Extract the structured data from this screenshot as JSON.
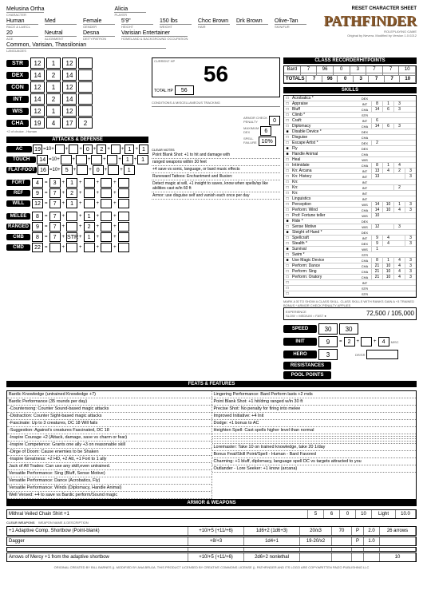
{
  "header": {
    "charname": "Melusina Ortha",
    "player": "Alicia",
    "race": "Human",
    "size": "Med",
    "gender": "Female",
    "height": "5'9\"",
    "weight": "150 lbs",
    "hair": "Choc Brown",
    "eyes": "Drk Brown",
    "skin": "Olive-Tan",
    "age": "20",
    "align": "Neutral",
    "deity": "Desna",
    "occupation": "Varisian Entertainer",
    "languages": "Common, Varisian, Thassilonian",
    "reset": "RESET CHARACTER SHEET",
    "logo": "PATHFINDER",
    "logosub": "ROLEPLAYING GAME",
    "version": "Original by Nevera. Modified by  Version 1.0.0212"
  },
  "abilities": [
    {
      "n": "STR",
      "s": "12",
      "m": "1",
      "t": "12"
    },
    {
      "n": "DEX",
      "s": "14",
      "m": "2",
      "t": "14"
    },
    {
      "n": "CON",
      "s": "12",
      "m": "1",
      "t": "12"
    },
    {
      "n": "INT",
      "s": "14",
      "m": "2",
      "t": "14"
    },
    {
      "n": "WIS",
      "s": "12",
      "m": "1",
      "t": "12"
    },
    {
      "n": "CHA",
      "s": "19",
      "m": "4",
      "t": "17",
      "tm": "2"
    }
  ],
  "abnote": "+2 of choice - Human",
  "defense": {
    "ac": {
      "t": "19",
      "a": "",
      "s": "",
      "d": "",
      "sz": "",
      "n": "",
      "df": "",
      "dg": "",
      "m": ""
    },
    "touch": {
      "t": "14"
    },
    "flat": {
      "t": "16"
    }
  },
  "defside": {
    "armorchk": "0",
    "maxdex": "6",
    "spellfail": "10%"
  },
  "saves": [
    {
      "n": "FORT",
      "t": "4",
      "b": "3",
      "a": "1"
    },
    {
      "n": "REF",
      "t": "9",
      "b": "7",
      "a": "2"
    },
    {
      "n": "WILL",
      "t": "12",
      "b": "7",
      "a": "1"
    }
  ],
  "attacks": [
    {
      "n": "MELEE",
      "t": "8",
      "b": "7",
      "a": "1"
    },
    {
      "n": "RANGED",
      "t": "9",
      "b": "7",
      "a": "2"
    },
    {
      "n": "CMB",
      "t": "8",
      "b": "7",
      "s": "STR",
      "a": "1"
    },
    {
      "n": "CMD",
      "t": "22",
      "b": "",
      "a": ""
    }
  ],
  "hp": {
    "cur": "56",
    "tot": "56",
    "row": [
      "56",
      "8"
    ]
  },
  "classrec": {
    "hdr": "CLASS RECORDERHITPOINTS",
    "rows": [
      [
        "Bard",
        "7",
        "96",
        "0",
        "3",
        "7",
        "7",
        "10"
      ],
      [
        "",
        "",
        "",
        "",
        "",
        "",
        "",
        ""
      ]
    ],
    "totals": [
      "TOTALS",
      "7",
      "96",
      "0",
      "3",
      "7",
      "7",
      "10"
    ]
  },
  "clearnotes": [
    "Point Blank Shot: +1 to hit and damage with",
    "ranged weapons within 30 feet",
    "+4 save vs sonic, language, or bard music effects",
    "Runeward Tattoos: Enchantment and Illusion:",
    "Detect magic at will, +1 insight to saves, know when spells/sp like abilities cast w/in 60 ft",
    "Armor: use disguise self and vanish each once per day"
  ],
  "skillshdr": "SKILLS",
  "skills": [
    {
      "c": "□",
      "n": "Acrobatics *",
      "a": "DEX",
      "t": "",
      "r": "",
      "m": ""
    },
    {
      "c": "□",
      "n": "Appraise",
      "a": "INT",
      "t": "8",
      "r": "1",
      "m": "3"
    },
    {
      "c": "□",
      "n": "Bluff",
      "a": "CHA",
      "t": "14",
      "r": "6",
      "m": "3"
    },
    {
      "c": "□",
      "n": "Climb *",
      "a": "STR",
      "t": "",
      "r": "",
      "m": ""
    },
    {
      "c": "□",
      "n": "Craft:",
      "a": "INT",
      "t": "6",
      "r": "",
      "m": ""
    },
    {
      "c": "□",
      "n": "Diplomacy",
      "a": "CHA",
      "t": "14",
      "r": "6",
      "m": "3"
    },
    {
      "c": "■",
      "n": "Disable Device *",
      "a": "DEX",
      "t": "",
      "r": "",
      "m": ""
    },
    {
      "c": "□",
      "n": "Disguise",
      "a": "CHA",
      "t": "",
      "r": "",
      "m": ""
    },
    {
      "c": "□",
      "n": "Escape Artist *",
      "a": "DEX",
      "t": "2",
      "r": "",
      "m": ""
    },
    {
      "c": "■",
      "n": "Fly",
      "a": "DEX",
      "t": "",
      "r": "",
      "m": ""
    },
    {
      "c": "■",
      "n": "Handle Animal",
      "a": "CHA",
      "t": "",
      "r": "",
      "m": ""
    },
    {
      "c": "□",
      "n": "Heal",
      "a": "WIS",
      "t": "",
      "r": "",
      "m": ""
    },
    {
      "c": "□",
      "n": "Intimidate",
      "a": "CHA",
      "t": "8",
      "r": "1",
      "m": "4"
    },
    {
      "c": "□",
      "n": "Kn: Arcana",
      "a": "INT",
      "t": "13",
      "r": "4",
      "m": "2",
      "x": "3"
    },
    {
      "c": "□",
      "n": "Kn: History",
      "a": "INT",
      "t": "13",
      "r": "",
      "m": "",
      "x": "3"
    },
    {
      "c": "□",
      "n": "Kn:",
      "a": "INT",
      "t": "",
      "r": "",
      "m": ""
    },
    {
      "c": "□",
      "n": "Kn:",
      "a": "INT",
      "t": "",
      "r": "",
      "m": "2"
    },
    {
      "c": "□",
      "n": "Kn:",
      "a": "INT",
      "t": "",
      "r": "",
      "m": ""
    },
    {
      "c": "□",
      "n": "Linguistics",
      "a": "INT",
      "t": "",
      "r": "",
      "m": ""
    },
    {
      "c": "□",
      "n": "Perception",
      "a": "WIS",
      "t": "14",
      "r": "10",
      "m": "1",
      "x": "3"
    },
    {
      "c": "□",
      "n": "Perform: Wind",
      "a": "CHA",
      "t": "14",
      "r": "10",
      "m": "4",
      "x": "3"
    },
    {
      "c": "□",
      "n": "Prof: Fortune teller",
      "a": "WIS",
      "t": "10",
      "r": "",
      "m": ""
    },
    {
      "c": "■",
      "n": "Ride *",
      "a": "DEX",
      "t": "",
      "r": "",
      "m": ""
    },
    {
      "c": "□",
      "n": "Sense Motive",
      "a": "WIS",
      "t": "12",
      "r": "",
      "m": "3"
    },
    {
      "c": "■",
      "n": "Sleight of Hand *",
      "a": "DEX",
      "t": "",
      "r": "",
      "m": ""
    },
    {
      "c": "□",
      "n": "Spellcraft",
      "a": "INT",
      "t": "9",
      "r": "4",
      "m": "",
      "x": "3"
    },
    {
      "c": "□",
      "n": "Stealth *",
      "a": "DEX",
      "t": "9",
      "r": "4",
      "m": "",
      "x": "3"
    },
    {
      "c": "■",
      "n": "Survival",
      "a": "WIS",
      "t": "1",
      "r": "",
      "m": ""
    },
    {
      "c": "□",
      "n": "Swim *",
      "a": "STR",
      "t": "",
      "r": "",
      "m": ""
    },
    {
      "c": "■",
      "n": "Use Magic Device",
      "a": "CHA",
      "t": "8",
      "r": "1",
      "m": "4",
      "x": "3"
    },
    {
      "c": "□",
      "n": "Perform: Dance",
      "a": "CHA",
      "t": "21",
      "r": "10",
      "m": "4",
      "x": "3"
    },
    {
      "c": "□",
      "n": "Perform: Sing",
      "a": "CHA",
      "t": "21",
      "r": "10",
      "m": "4",
      "x": "3"
    },
    {
      "c": "□",
      "n": "Perform: Oratory",
      "a": "CHA",
      "t": "21",
      "r": "10",
      "m": "4",
      "x": "3"
    },
    {
      "c": "□",
      "n": "",
      "a": "INT",
      "t": "",
      "r": "",
      "m": ""
    },
    {
      "c": "□",
      "n": "",
      "a": "STR",
      "t": "",
      "r": "",
      "m": ""
    },
    {
      "c": "□",
      "n": "",
      "a": "STR",
      "t": "",
      "r": "",
      "m": ""
    }
  ],
  "skillnote": "MARK A ☒ TO SHOW A CLASS SKILL. CLASS SKILLS WITH RANKS GAIN A +3 TRAINED BONUS\n* ARMOR CHECK PENALTY APPLIES",
  "exp": {
    "lbl": "EXPERIENCE",
    "slow": "SLOW ○  MEDIUM ○  FAST ●",
    "cur": "72,500",
    "next": "105,000"
  },
  "speed": {
    "n": "SPEED",
    "v": "30",
    "b": "30"
  },
  "init": {
    "n": "INIT",
    "v": "9",
    "d": "2",
    "m": "",
    "x": "4"
  },
  "hero": {
    "n": "HERO",
    "v": "3"
  },
  "res": {
    "n": "RESISTANCES"
  },
  "pool": {
    "n": "POOL POINTS"
  },
  "featshdr": "FEATS & FEATURES",
  "featsL": [
    "Bardic Knowledge (untrained Knowledge +7)",
    "Bardic Performance (35 rounds per day)",
    "-Countersong: Counter Sound-based magic attacks",
    "-Distraction: Counter Sight-based magic attacks",
    "-Fascinate: Up to 3 creatures, DC 18 Will fails",
    "-Suggestion: Against's creatures Fascinated, DC 18",
    "-Inspire Courage +2 (Attack, damage, save vs charm or fear)",
    "-Inspire Competence: Grants one ally +3 on reasonable skill",
    "-Dirge of Doom: Cause enemies to be Shaken",
    "-Inspire Greatness: +2 HD, +2 Att, +1 Fort to 1 ally",
    "Jack of All Trades: Can use any skill,even untrained.",
    "Versatile Performance: Sing (Bluff, Sense Motive)",
    "Versatile Performance: Dance (Acrobatics, Fly)",
    "Versatile Performance: Winds (Diplomacy, Handle Animal)",
    "Well Versed: +4 to save vs Bardic perform/Sound magic"
  ],
  "featsR": [
    "Lingering Performance: Bard Perform lasts +2 rnds",
    "Point Blank Shot: +1 hit/dmg ranged w/in 30 ft",
    "Precise Shot: No penalty for firing into melee",
    "Improved Initiative: +4 Init",
    "Dodge: +1 bonus to AC",
    "Heighten Spell: Cast spells higher level than normal",
    "",
    "",
    "",
    "",
    "Loremaster: Take 10 on trained knowledge, take 20 1/day",
    "Bonus Feat/Skill Point/Spell - Human - Bard Favored",
    "Charming: +1 bluff, diplomacy, language spell DC vs targets attracted to you",
    "Outlander - Lore Seeker: +1 know (arcana)"
  ],
  "armorhdr": "ARMOR & WEAPONS",
  "armor": {
    "name": "Mithral Veiled Chain Shirt +1",
    "ac": "5",
    "mx": "6",
    "chk": "0",
    "sf": "10",
    "sp": "Light",
    "wt": "10.0"
  },
  "weapons": [
    {
      "n": "+1 Adaptive Comp. Shortbow (Point-blank)",
      "atk": "+10/+5 (+11/+6)",
      "dmg": "1d6+2 (1d6+3)",
      "crit": "20/x3",
      "rng": "70",
      "tp": "P",
      "wt": "2.0",
      "ammo": "26 arrows"
    },
    {
      "n": "Dagger",
      "atk": "+8/+3",
      "dmg": "1d4+1",
      "crit": "19-20/x2",
      "rng": "",
      "tp": "P",
      "wt": "1.0",
      "ammo": ""
    },
    {
      "n": "",
      "atk": "",
      "dmg": "",
      "crit": "",
      "rng": "",
      "tp": "",
      "wt": "",
      "ammo": ""
    },
    {
      "n": "Arrows of Mercy +1 from the adaptive shortbow",
      "atk": "+10/+5 (+11/+6)",
      "dmg": "2d6+2 nonlethal",
      "crit": "",
      "rng": "",
      "tp": "",
      "wt": "",
      "ammo": "10"
    }
  ],
  "credit": "ORIGINAL CREATED BY BILL BARNES (). MODIFIED BY ANA BRUJA. THIS PRODUCT LICENSED BY CREATIVE COMMONS LICENSE (). PATHFINDER AND ITS LOGO ARE COPYWRITTEN PAIZO PUBLISHING LLC"
}
